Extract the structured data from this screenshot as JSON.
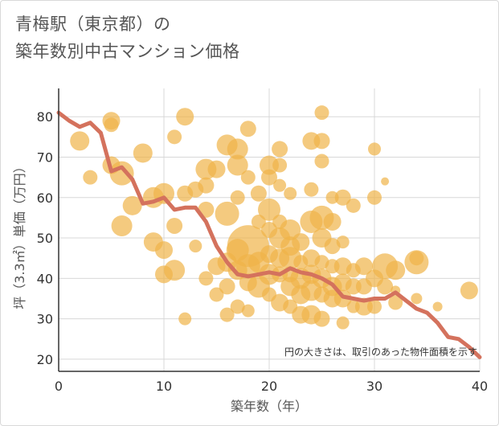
{
  "title": {
    "line1": "青梅駅（東京都）の",
    "line2": "築年数別中古マンション価格"
  },
  "chart_data": {
    "type": "scatter",
    "xlabel": "築年数（年）",
    "ylabel": "坪（3.3㎡）単価（万円）",
    "xlim": [
      0,
      40
    ],
    "ylim": [
      17,
      87
    ],
    "xticks": [
      0,
      10,
      20,
      30,
      40
    ],
    "yticks": [
      20,
      30,
      40,
      50,
      60,
      70,
      80
    ],
    "grid": true,
    "note": "円の大きさは、取引のあった物件面積を示す",
    "colors": {
      "bubble": "#f0b449",
      "line": "#d4725d",
      "grid": "#d8d8d8",
      "axis": "#333333"
    },
    "bubbles": [
      [
        2,
        74,
        12
      ],
      [
        3,
        65,
        9
      ],
      [
        5,
        79,
        11
      ],
      [
        5,
        78,
        9
      ],
      [
        5,
        68,
        11
      ],
      [
        6,
        66,
        15
      ],
      [
        6,
        53,
        13
      ],
      [
        7,
        58,
        12
      ],
      [
        8,
        71,
        12
      ],
      [
        9,
        60,
        13
      ],
      [
        9,
        49,
        12
      ],
      [
        10,
        61,
        13
      ],
      [
        10,
        47,
        11
      ],
      [
        10,
        41,
        11
      ],
      [
        11,
        75,
        9
      ],
      [
        11,
        53,
        10
      ],
      [
        11,
        42,
        13
      ],
      [
        12,
        80,
        11
      ],
      [
        12,
        61,
        10
      ],
      [
        12,
        30,
        8
      ],
      [
        13,
        62,
        10
      ],
      [
        13,
        48,
        8
      ],
      [
        14,
        67,
        13
      ],
      [
        14,
        63,
        10
      ],
      [
        14,
        57,
        10
      ],
      [
        14,
        40,
        9
      ],
      [
        15,
        67,
        11
      ],
      [
        15,
        43,
        11
      ],
      [
        15,
        36,
        9
      ],
      [
        16,
        73,
        13
      ],
      [
        16,
        56,
        15
      ],
      [
        16,
        44,
        12
      ],
      [
        16,
        38,
        10
      ],
      [
        16,
        31,
        9
      ],
      [
        17,
        72,
        13
      ],
      [
        17,
        68,
        13
      ],
      [
        17,
        60,
        9
      ],
      [
        17,
        47,
        14
      ],
      [
        17,
        42,
        12
      ],
      [
        17,
        33,
        9
      ],
      [
        18,
        77,
        10
      ],
      [
        18,
        65,
        9
      ],
      [
        18,
        48,
        26
      ],
      [
        18,
        43,
        15
      ],
      [
        18,
        39,
        11
      ],
      [
        18,
        32,
        8
      ],
      [
        19,
        61,
        10
      ],
      [
        19,
        54,
        9
      ],
      [
        19,
        44,
        13
      ],
      [
        19,
        38,
        14
      ],
      [
        20,
        68,
        12
      ],
      [
        20,
        65,
        10
      ],
      [
        20,
        57,
        14
      ],
      [
        20,
        52,
        10
      ],
      [
        20,
        46,
        11
      ],
      [
        20,
        41,
        13
      ],
      [
        20,
        36,
        9
      ],
      [
        21,
        72,
        10
      ],
      [
        21,
        68,
        9
      ],
      [
        21,
        63,
        8
      ],
      [
        21,
        54,
        9
      ],
      [
        21,
        50,
        13
      ],
      [
        21,
        45,
        12
      ],
      [
        21,
        41,
        10
      ],
      [
        21,
        34,
        11
      ],
      [
        22,
        61,
        8
      ],
      [
        22,
        52,
        13
      ],
      [
        22,
        48,
        12
      ],
      [
        22,
        45,
        14
      ],
      [
        22,
        41,
        10
      ],
      [
        22,
        38,
        12
      ],
      [
        22,
        33,
        9
      ],
      [
        23,
        49,
        11
      ],
      [
        23,
        44,
        9
      ],
      [
        23,
        40,
        13
      ],
      [
        23,
        36,
        12
      ],
      [
        23,
        31,
        11
      ],
      [
        24,
        74,
        11
      ],
      [
        24,
        62,
        9
      ],
      [
        24,
        54,
        14
      ],
      [
        24,
        45,
        11
      ],
      [
        24,
        41,
        12
      ],
      [
        24,
        37,
        13
      ],
      [
        24,
        31,
        12
      ],
      [
        25,
        81,
        9
      ],
      [
        25,
        74,
        10
      ],
      [
        25,
        69,
        9
      ],
      [
        25,
        55,
        15
      ],
      [
        25,
        50,
        12
      ],
      [
        25,
        44,
        9
      ],
      [
        25,
        40,
        12
      ],
      [
        25,
        36,
        10
      ],
      [
        25,
        30,
        10
      ],
      [
        26,
        60,
        8
      ],
      [
        26,
        54,
        11
      ],
      [
        26,
        48,
        10
      ],
      [
        26,
        43,
        9
      ],
      [
        26,
        38,
        12
      ],
      [
        26,
        35,
        11
      ],
      [
        27,
        60,
        10
      ],
      [
        27,
        49,
        8
      ],
      [
        27,
        43,
        11
      ],
      [
        27,
        39,
        11
      ],
      [
        27,
        35,
        11
      ],
      [
        27,
        29,
        8
      ],
      [
        28,
        58,
        9
      ],
      [
        28,
        42,
        9
      ],
      [
        28,
        38,
        10
      ],
      [
        28,
        33,
        8
      ],
      [
        29,
        43,
        11
      ],
      [
        29,
        38,
        10
      ],
      [
        29,
        33,
        11
      ],
      [
        30,
        72,
        8
      ],
      [
        30,
        60,
        9
      ],
      [
        30,
        40,
        11
      ],
      [
        30,
        33,
        9
      ],
      [
        31,
        64,
        5
      ],
      [
        31,
        43,
        16
      ],
      [
        31,
        38,
        10
      ],
      [
        32,
        42,
        12
      ],
      [
        32,
        37,
        6
      ],
      [
        32,
        34,
        9
      ],
      [
        34,
        45,
        9
      ],
      [
        34,
        44,
        15
      ],
      [
        34,
        35,
        7
      ],
      [
        36,
        33,
        6
      ],
      [
        39,
        37,
        11
      ]
    ],
    "series": [
      {
        "x": [
          0,
          1,
          2,
          3,
          4,
          5,
          6,
          7,
          8,
          9,
          10,
          11,
          12,
          13,
          14,
          15,
          16,
          17,
          18,
          19,
          20,
          21,
          22,
          23,
          24,
          25,
          26,
          27,
          28,
          29,
          30,
          31,
          32,
          33,
          34,
          35,
          36,
          37,
          38,
          39,
          40
        ],
        "y": [
          81,
          79,
          77.5,
          78.5,
          76,
          66.5,
          67.5,
          64.5,
          58.5,
          59,
          60,
          57,
          57.5,
          57.5,
          54,
          48,
          44,
          41,
          40.5,
          41,
          41.5,
          41,
          42.5,
          41.5,
          41,
          40,
          38.5,
          35.5,
          35,
          34.5,
          35,
          35,
          36.5,
          34.5,
          32.5,
          31.5,
          29,
          25.5,
          25,
          23,
          20.5
        ]
      }
    ]
  }
}
